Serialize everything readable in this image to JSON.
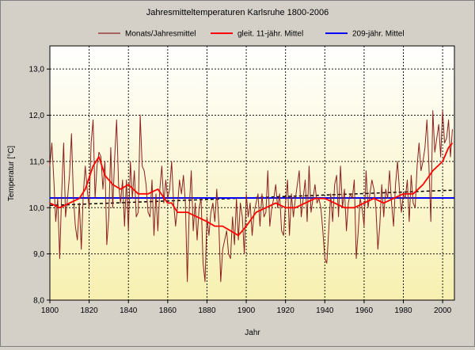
{
  "chart_data": {
    "type": "line",
    "title": "Jahresmitteltemperaturen Karlsruhe 1800-2006",
    "xlabel": "Jahr",
    "ylabel": "Temperatur [°C]",
    "xlim": [
      1800,
      2006
    ],
    "ylim": [
      8.0,
      13.5
    ],
    "x_ticks": [
      1800,
      1820,
      1840,
      1860,
      1880,
      1900,
      1920,
      1940,
      1960,
      1980,
      2000
    ],
    "y_ticks": [
      8.0,
      9.0,
      10.0,
      11.0,
      12.0,
      13.0
    ],
    "y_tick_labels": [
      "8,0",
      "9,0",
      "10,0",
      "11,0",
      "12,0",
      "13,0"
    ],
    "grid": true,
    "legend_position": "top",
    "colors": {
      "annual": "#8b2020",
      "smooth": "#ff0000",
      "mean": "#0000ff",
      "trend": "#000000",
      "plot_bg_top": "#ffffff",
      "plot_bg_bottom": "#f7f0b0"
    },
    "series": [
      {
        "name": "Monats/Jahresmittel",
        "key": "annual",
        "x_start": 1800,
        "values": [
          10.9,
          11.4,
          10.6,
          9.7,
          10.2,
          8.9,
          10.3,
          11.4,
          9.8,
          10.2,
          10.7,
          11.6,
          10.2,
          9.6,
          9.3,
          10.1,
          9.1,
          10.3,
          10.9,
          10.4,
          10.0,
          11.4,
          11.9,
          10.2,
          10.9,
          11.2,
          11.1,
          10.4,
          11.0,
          9.2,
          9.8,
          11.3,
          10.0,
          11.1,
          11.9,
          10.5,
          10.1,
          10.6,
          9.6,
          10.6,
          9.5,
          11.0,
          10.2,
          10.8,
          9.8,
          9.9,
          12.0,
          10.9,
          10.8,
          10.5,
          9.9,
          9.8,
          10.6,
          9.4,
          10.3,
          9.5,
          10.4,
          10.9,
          10.1,
          10.6,
          10.2,
          10.4,
          11.0,
          10.1,
          9.6,
          10.0,
          10.6,
          10.3,
          10.7,
          10.1,
          8.4,
          10.0,
          10.8,
          9.5,
          10.1,
          9.3,
          10.0,
          10.2,
          8.8,
          8.4,
          9.8,
          9.4,
          9.9,
          10.1,
          9.7,
          10.4,
          9.7,
          8.4,
          9.1,
          9.3,
          9.5,
          9.0,
          8.9,
          9.8,
          9.2,
          10.2,
          9.3,
          10.1,
          9.8,
          9.0,
          10.3,
          9.8,
          10.1,
          9.4,
          9.9,
          10.1,
          10.3,
          9.6,
          10.3,
          9.8,
          9.9,
          10.8,
          9.6,
          10.0,
          10.2,
          10.5,
          10.0,
          10.3,
          9.5,
          9.4,
          10.1,
          10.6,
          9.4,
          10.3,
          9.8,
          10.2,
          10.5,
          10.8,
          9.8,
          10.2,
          10.6,
          9.7,
          10.9,
          9.9,
          10.2,
          10.5,
          10.1,
          10.2,
          10.0,
          9.5,
          8.9,
          8.8,
          9.5,
          10.3,
          9.7,
          10.5,
          10.7,
          9.8,
          10.9,
          10.0,
          10.4,
          9.5,
          10.1,
          10.3,
          10.2,
          10.6,
          8.9,
          9.5,
          10.2,
          10.0,
          9.6,
          10.8,
          10.0,
          10.3,
          10.6,
          10.4,
          10.0,
          9.1,
          9.6,
          10.5,
          9.8,
          10.4,
          10.2,
          10.8,
          10.1,
          9.6,
          10.5,
          11.0,
          10.4,
          9.9,
          10.3,
          10.2,
          10.6,
          9.7,
          10.7,
          10.1,
          10.0,
          10.9,
          11.4,
          10.8,
          11.0,
          11.3,
          11.9,
          10.9,
          9.7,
          12.1,
          11.2,
          11.5,
          11.8,
          11.1,
          12.1,
          11.4,
          11.5,
          11.9,
          11.1,
          11.7
        ]
      },
      {
        "name": "gleit. 11-jähr. Mittel",
        "key": "smooth",
        "x": [
          1800,
          1805,
          1810,
          1815,
          1818,
          1822,
          1825,
          1828,
          1832,
          1836,
          1840,
          1845,
          1850,
          1855,
          1860,
          1862,
          1865,
          1870,
          1875,
          1880,
          1884,
          1888,
          1892,
          1896,
          1900,
          1905,
          1910,
          1915,
          1920,
          1925,
          1930,
          1935,
          1940,
          1945,
          1950,
          1955,
          1960,
          1965,
          1970,
          1975,
          1980,
          1985,
          1990,
          1995,
          2000,
          2003,
          2005
        ],
        "values": [
          10.1,
          10.0,
          10.1,
          10.2,
          10.4,
          10.9,
          11.1,
          10.7,
          10.5,
          10.4,
          10.5,
          10.3,
          10.3,
          10.4,
          10.1,
          10.1,
          9.9,
          9.9,
          9.8,
          9.7,
          9.6,
          9.6,
          9.5,
          9.4,
          9.6,
          9.9,
          10.0,
          10.1,
          10.0,
          10.0,
          10.1,
          10.2,
          10.2,
          10.1,
          10.0,
          10.0,
          10.1,
          10.2,
          10.1,
          10.2,
          10.3,
          10.3,
          10.5,
          10.8,
          11.0,
          11.3,
          11.4
        ]
      },
      {
        "name": "209-jähr. Mittel",
        "key": "mean",
        "x": [
          1800,
          2006
        ],
        "values": [
          10.21,
          10.21
        ]
      },
      {
        "key": "trend",
        "x": [
          1800,
          2006
        ],
        "values": [
          10.05,
          10.38
        ]
      }
    ]
  }
}
